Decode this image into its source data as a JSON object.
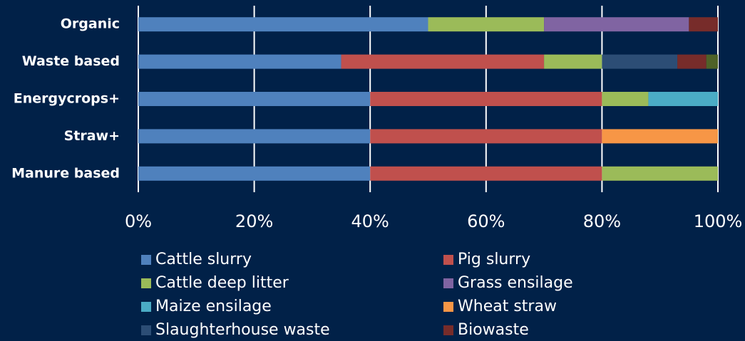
{
  "chart_data": {
    "type": "stacked_barh",
    "categories": [
      "Organic",
      "Waste based",
      "Energycrops+",
      "Straw+",
      "Manure based"
    ],
    "series": [
      {
        "name": "Cattle slurry",
        "color": "#4f81bd",
        "values": [
          50,
          35,
          40,
          40,
          40
        ]
      },
      {
        "name": "Pig slurry",
        "color": "#c0504d",
        "values": [
          null,
          35,
          40,
          40,
          40
        ]
      },
      {
        "name": "Cattle deep litter",
        "color": "#9bbb59",
        "values": [
          20,
          10,
          8,
          null,
          20
        ]
      },
      {
        "name": "Grass ensilage",
        "color": "#8064a2",
        "values": [
          25,
          null,
          null,
          null,
          null
        ]
      },
      {
        "name": "Maize ensilage",
        "color": "#4bacc6",
        "values": [
          null,
          null,
          12,
          null,
          null
        ]
      },
      {
        "name": "Wheat straw",
        "color": "#f79646",
        "values": [
          null,
          null,
          null,
          20,
          null
        ]
      },
      {
        "name": "Slaughterhouse waste",
        "color": "#2c4d75",
        "values": [
          null,
          13,
          null,
          null,
          null
        ]
      },
      {
        "name": "Biowaste",
        "color": "#772c2a",
        "values": [
          5,
          5,
          null,
          null,
          null
        ]
      },
      {
        "name": null,
        "color": "#4f6228",
        "values": [
          null,
          2,
          null,
          null,
          null
        ]
      }
    ],
    "xlim": [
      0,
      100
    ],
    "xticks": [
      {
        "value": 0,
        "label": "0%"
      },
      {
        "value": 20,
        "label": "20%"
      },
      {
        "value": 40,
        "label": "40%"
      },
      {
        "value": 60,
        "label": "60%"
      },
      {
        "value": 80,
        "label": "80%"
      },
      {
        "value": 100,
        "label": "100%"
      }
    ],
    "grid": true,
    "legend": "bottom"
  }
}
